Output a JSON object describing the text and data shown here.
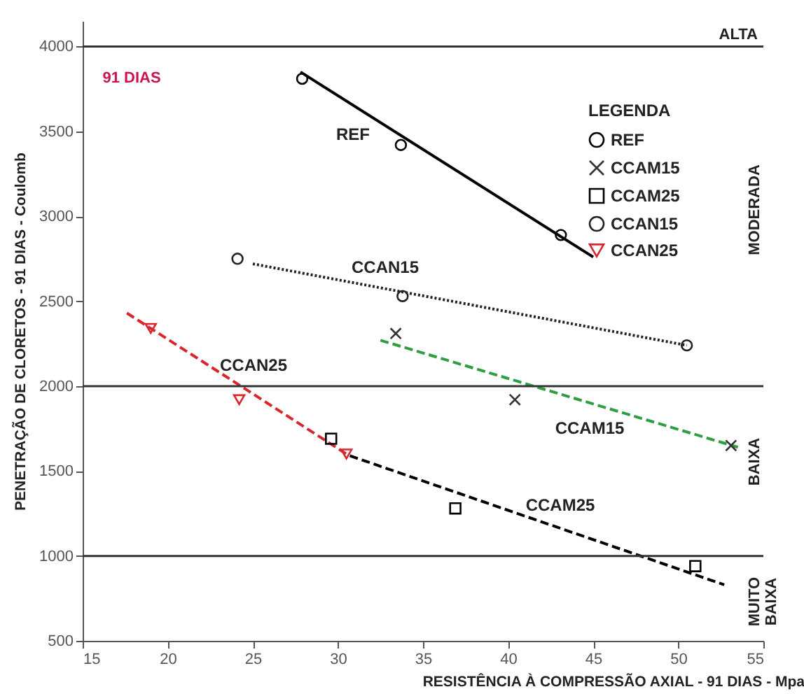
{
  "chart_data": {
    "type": "scatter",
    "xlabel": "RESISTÊNCIA À COMPRESSÃO AXIAL - 91 DIAS - Mpa",
    "ylabel": "PENETRAÇÃO DE CLORETOS - 91 DIAS - Coulomb",
    "legend_title": "LEGENDA",
    "legend": "top right",
    "grid": false,
    "xlim": [
      15,
      55
    ],
    "xticks": [
      15,
      20,
      25,
      30,
      35,
      40,
      45,
      50,
      55
    ],
    "ylim": [
      500,
      4150
    ],
    "yticks": [
      500,
      1000,
      1500,
      2000,
      2500,
      3000,
      3500,
      4000
    ],
    "series": [
      {
        "name": "REF",
        "marker": "circle",
        "color": "#000000",
        "x": [
          27.9,
          33.7,
          43.1
        ],
        "values": [
          3810,
          3420,
          2890
        ]
      },
      {
        "name": "CCAM15",
        "marker": "cross",
        "color": "#333333",
        "x": [
          33.4,
          40.4,
          53.1
        ],
        "values": [
          2310,
          1920,
          1650
        ]
      },
      {
        "name": "CCAM25",
        "marker": "square",
        "color": "#000000",
        "x": [
          29.6,
          36.9,
          51.0
        ],
        "values": [
          1690,
          1280,
          940
        ]
      },
      {
        "name": "CCAN15",
        "marker": "circle",
        "color": "#222222",
        "x": [
          24.1,
          33.8,
          50.5
        ],
        "values": [
          2750,
          2530,
          2240
        ]
      },
      {
        "name": "CCAN25",
        "marker": "triangle",
        "color": "#d9262b",
        "x": [
          19.0,
          24.2,
          30.5
        ],
        "values": [
          2340,
          1920,
          1600
        ]
      },
      {
        "type": "line",
        "line_style": "solid",
        "color": "#000000",
        "x": [
          27.8,
          45.0
        ],
        "values": [
          3850,
          2760
        ]
      },
      {
        "type": "line",
        "line_style": "dashed",
        "color": "#2e9e3e",
        "x": [
          32.5,
          53.5
        ],
        "values": [
          2270,
          1640
        ]
      },
      {
        "type": "line",
        "line_style": "dashed",
        "color": "#000000",
        "x": [
          30.7,
          52.7
        ],
        "values": [
          1590,
          830
        ]
      },
      {
        "type": "line",
        "line_style": "dotted",
        "color": "#222222",
        "x": [
          25.0,
          50.5
        ],
        "values": [
          2720,
          2240
        ]
      },
      {
        "type": "line",
        "line_style": "dashed",
        "color": "#d9262b",
        "x": [
          17.6,
          24.3,
          30.5
        ],
        "values": [
          2430,
          2000,
          1600
        ]
      }
    ],
    "ref_lines": [
      {
        "axis": "y",
        "value": 4000,
        "label": "ALTA"
      },
      {
        "axis": "y",
        "value": 2000
      },
      {
        "axis": "y",
        "value": 1000
      }
    ],
    "annotations": [
      "91 DIAS",
      "REF",
      "CCAN15",
      "CCAM15",
      "CCAM25",
      "CCAN25",
      "MODERADA",
      "BAIXA",
      "MUITO BAIXA"
    ]
  }
}
